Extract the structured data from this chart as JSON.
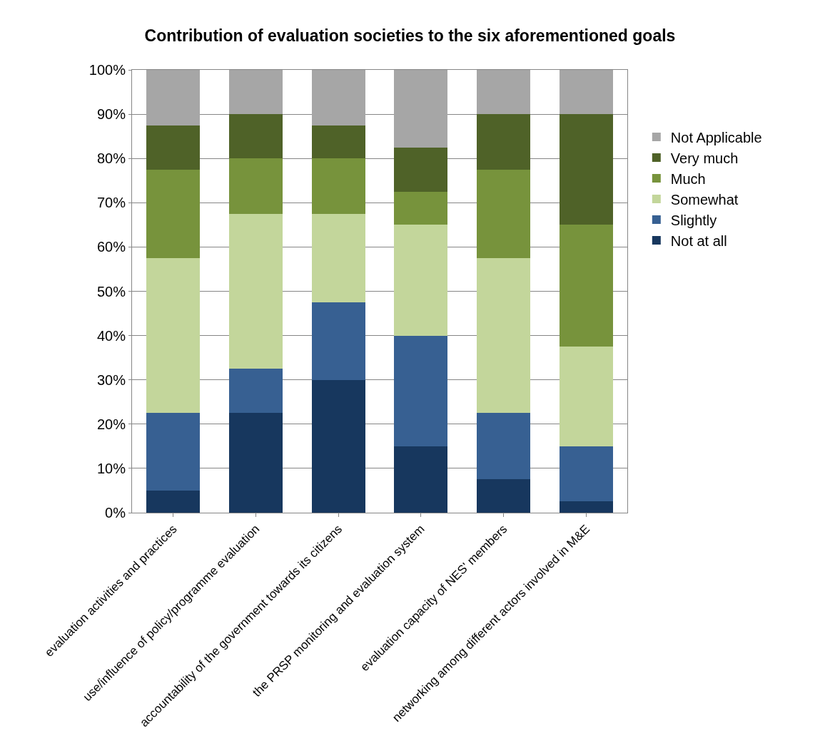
{
  "chart_data": {
    "type": "bar",
    "stacked": true,
    "title": "Contribution of evaluation societies to the six aforementioned goals",
    "categories": [
      "evaluation activities and practices",
      "use/influence of policy/programme evaluation",
      "accountability of the government towards its citizens",
      "the PRSP monitoring and evaluation system",
      "evaluation capacity of NES' members",
      "networking among different actors involved in M&E"
    ],
    "series": [
      {
        "name": "Not at all",
        "color": "#17375e",
        "values": [
          5,
          22.5,
          30,
          15,
          7.5,
          2.5
        ]
      },
      {
        "name": "Slightly",
        "color": "#376092",
        "values": [
          17.5,
          10,
          17.5,
          25,
          15,
          12.5
        ]
      },
      {
        "name": "Somewhat",
        "color": "#c3d69b",
        "values": [
          35,
          35,
          20,
          25,
          35,
          22.5
        ]
      },
      {
        "name": "Much",
        "color": "#77933c",
        "values": [
          20,
          12.5,
          12.5,
          7.5,
          20,
          27.5
        ]
      },
      {
        "name": "Very much",
        "color": "#4f6228",
        "values": [
          10,
          10,
          7.5,
          10,
          12.5,
          25
        ]
      },
      {
        "name": "Not Applicable",
        "color": "#a6a6a6",
        "values": [
          12.5,
          10,
          12.5,
          17.5,
          10,
          10
        ]
      }
    ],
    "ylim": [
      0,
      100
    ],
    "yticks": [
      {
        "value": 0,
        "label": "0%"
      },
      {
        "value": 10,
        "label": "10%"
      },
      {
        "value": 20,
        "label": "20%"
      },
      {
        "value": 30,
        "label": "30%"
      },
      {
        "value": 40,
        "label": "40%"
      },
      {
        "value": 50,
        "label": "50%"
      },
      {
        "value": 60,
        "label": "60%"
      },
      {
        "value": 70,
        "label": "70%"
      },
      {
        "value": 80,
        "label": "80%"
      },
      {
        "value": 90,
        "label": "90%"
      },
      {
        "value": 100,
        "label": "100%"
      }
    ],
    "grid": "y",
    "legend": "right"
  }
}
